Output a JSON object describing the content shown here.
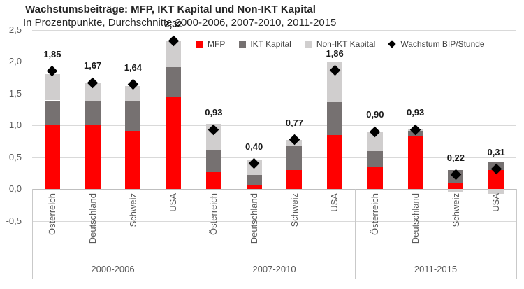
{
  "title": "Wachstumsbeiträge: MFP, IKT Kapital und Non-IKT Kapital",
  "subtitle": "In Prozentpunkte, Durchschnitte 2000-2006, 2007-2010, 2011-2015",
  "legend": {
    "mfp": "MFP",
    "ikt": "IKT Kapital",
    "nonikt": "Non-IKT Kapital",
    "bip": "Wachstum BIP/Stunde"
  },
  "colors": {
    "mfp": "#FF0000",
    "ikt": "#767171",
    "nonikt": "#D0CECE",
    "marker": "#000000"
  },
  "chart_data": {
    "type": "bar",
    "stacked": true,
    "title": "Wachstumsbeiträge: MFP, IKT Kapital und Non-IKT Kapital",
    "subtitle": "In Prozentpunkte, Durchschnitte 2000-2006, 2007-2010, 2011-2015",
    "xlabel": "",
    "ylabel": "",
    "ylim": [
      -0.5,
      2.5
    ],
    "grid": true,
    "legend_position": "top",
    "series_names": [
      "MFP",
      "IKT Kapital",
      "Non-IKT Kapital"
    ],
    "marker_series": "Wachstum BIP/Stunde",
    "y_ticks": [
      {
        "label": "2,5",
        "value": 2.5
      },
      {
        "label": "2,0",
        "value": 2.0
      },
      {
        "label": "1,5",
        "value": 1.5
      },
      {
        "label": "1,0",
        "value": 1.0
      },
      {
        "label": "0,5",
        "value": 0.5
      },
      {
        "label": "0,0",
        "value": 0.0
      },
      {
        "label": "-0,5",
        "value": -0.5
      }
    ],
    "groups": [
      {
        "period": "2000-2006",
        "bars": [
          {
            "country": "Österreich",
            "mfp": 1.0,
            "ikt": 0.39,
            "nonikt": 0.41,
            "bip": 1.85,
            "bip_label": "1,85"
          },
          {
            "country": "Deutschland",
            "mfp": 1.0,
            "ikt": 0.37,
            "nonikt": 0.3,
            "bip": 1.67,
            "bip_label": "1,67"
          },
          {
            "country": "Schweiz",
            "mfp": 0.91,
            "ikt": 0.47,
            "nonikt": 0.24,
            "bip": 1.64,
            "bip_label": "1,64"
          },
          {
            "country": "USA",
            "mfp": 1.44,
            "ikt": 0.47,
            "nonikt": 0.41,
            "bip": 2.32,
            "bip_label": "2,32"
          }
        ]
      },
      {
        "period": "2007-2010",
        "bars": [
          {
            "country": "Österreich",
            "mfp": 0.26,
            "ikt": 0.34,
            "nonikt": 0.42,
            "bip": 0.93,
            "bip_label": "0,93"
          },
          {
            "country": "Deutschland",
            "mfp": 0.05,
            "ikt": 0.17,
            "nonikt": 0.23,
            "bip": 0.4,
            "bip_label": "0,40"
          },
          {
            "country": "Schweiz",
            "mfp": 0.3,
            "ikt": 0.37,
            "nonikt": 0.1,
            "bip": 0.77,
            "bip_label": "0,77"
          },
          {
            "country": "USA",
            "mfp": 0.85,
            "ikt": 0.51,
            "nonikt": 0.64,
            "bip": 1.86,
            "bip_label": "1,86"
          }
        ]
      },
      {
        "period": "2011-2015",
        "bars": [
          {
            "country": "Österreich",
            "mfp": 0.35,
            "ikt": 0.24,
            "nonikt": 0.31,
            "bip": 0.9,
            "bip_label": "0,90"
          },
          {
            "country": "Deutschland",
            "mfp": 0.82,
            "ikt": 0.09,
            "nonikt": 0.03,
            "bip": 0.93,
            "bip_label": "0,93"
          },
          {
            "country": "Schweiz",
            "mfp": 0.09,
            "ikt": 0.21,
            "nonikt": -0.05,
            "bip": 0.22,
            "bip_label": "0,22"
          },
          {
            "country": "USA",
            "mfp": 0.3,
            "ikt": 0.12,
            "nonikt": -0.08,
            "bip": 0.31,
            "bip_label": "0,31"
          }
        ]
      }
    ]
  }
}
